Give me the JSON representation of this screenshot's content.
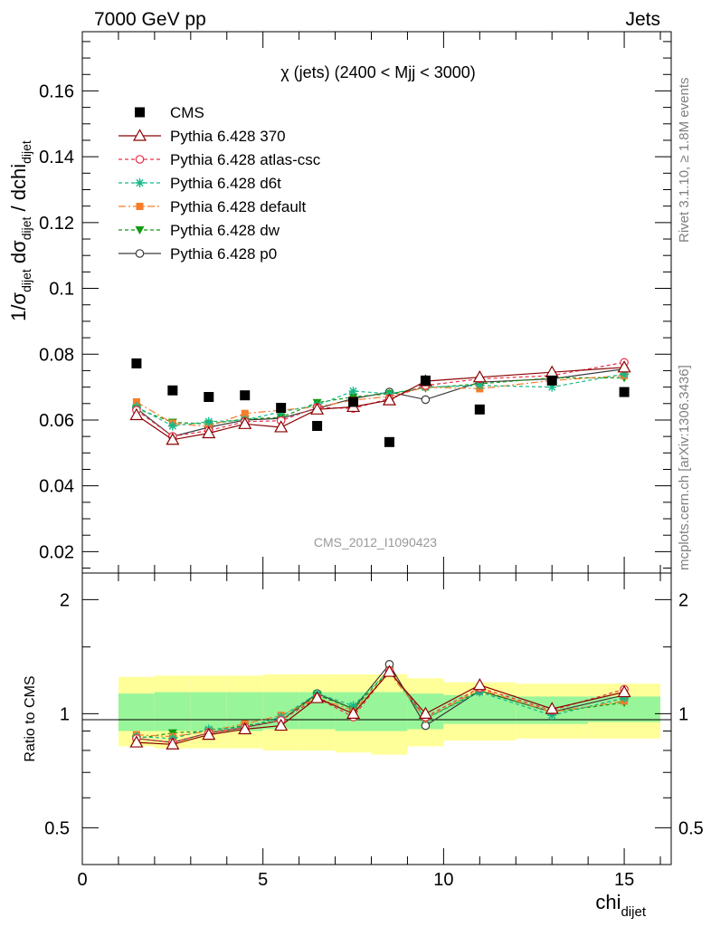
{
  "header": {
    "left": "7000 GeV pp",
    "right": "Jets"
  },
  "side_labels": {
    "rivet": "Rivet 3.1.10, ≥ 1.8M events",
    "mcplots": "mcplots.cern.ch [arXiv:1306.3436]"
  },
  "chart_data": [
    {
      "type": "scatter",
      "panel": "main",
      "title": "χ (jets) (2400 < Mjj < 3000)",
      "watermark": "CMS_2012_I1090423",
      "ylabel": "1/σ_dijet dσ_dijet / dchi_dijet",
      "xlabel": "chi_dijet",
      "xlim": [
        0,
        16.3
      ],
      "ylim": [
        0.0135,
        0.178
      ],
      "yticks": [
        "0.02",
        "0.04",
        "0.06",
        "0.08",
        "0.1",
        "0.12",
        "0.14",
        "0.16"
      ],
      "x": [
        1.5,
        2.5,
        3.5,
        4.5,
        5.5,
        6.5,
        7.5,
        8.5,
        9.5,
        11,
        13,
        15
      ],
      "legend_position": "top-left",
      "series": [
        {
          "name": "CMS",
          "color": "#000000",
          "marker": "square",
          "line": "none",
          "values": [
            0.0772,
            0.069,
            0.067,
            0.0675,
            0.0637,
            0.0582,
            0.0655,
            0.0533,
            0.072,
            0.0632,
            0.072,
            0.0685
          ]
        },
        {
          "name": "Pythia 6.428 370",
          "color": "#8b0000",
          "marker": "triangle-open",
          "line": "solid",
          "values": [
            0.0615,
            0.054,
            0.056,
            0.0588,
            0.0578,
            0.0632,
            0.064,
            0.066,
            0.0718,
            0.073,
            0.0745,
            0.076
          ]
        },
        {
          "name": "Pythia 6.428 atlas-csc",
          "color": "#e8304a",
          "marker": "circle-open",
          "line": "dashed",
          "values": [
            0.063,
            0.055,
            0.0568,
            0.0595,
            0.0598,
            0.0638,
            0.0635,
            0.0665,
            0.0705,
            0.0725,
            0.0735,
            0.0775
          ]
        },
        {
          "name": "Pythia 6.428 d6t",
          "color": "#13b88a",
          "marker": "star",
          "line": "dashed",
          "values": [
            0.064,
            0.0582,
            0.0595,
            0.06,
            0.0625,
            0.0645,
            0.0688,
            0.068,
            0.07,
            0.0705,
            0.07,
            0.074
          ]
        },
        {
          "name": "Pythia 6.428 default",
          "color": "#f57d2a",
          "marker": "square-small",
          "line": "dashdot",
          "values": [
            0.0655,
            0.059,
            0.058,
            0.062,
            0.063,
            0.064,
            0.066,
            0.0672,
            0.07,
            0.0695,
            0.072,
            0.0735
          ]
        },
        {
          "name": "Pythia 6.428 dw",
          "color": "#129a12",
          "marker": "triangle-down",
          "line": "dashed",
          "values": [
            0.0635,
            0.0593,
            0.0588,
            0.0603,
            0.0608,
            0.0653,
            0.067,
            0.068,
            0.0697,
            0.071,
            0.0728,
            0.0728
          ]
        },
        {
          "name": "Pythia 6.428 p0",
          "color": "#3c3c3c",
          "marker": "circle-open",
          "line": "solid",
          "values": [
            0.0635,
            0.055,
            0.0578,
            0.06,
            0.0605,
            0.0635,
            0.0665,
            0.0685,
            0.0662,
            0.0715,
            0.0725,
            0.0755
          ]
        }
      ]
    },
    {
      "type": "scatter",
      "panel": "ratio",
      "ylabel": "Ratio to CMS",
      "xlabel": "chi_dijet",
      "xlim": [
        0,
        16.3
      ],
      "ylim": [
        0.4,
        2.35
      ],
      "yscale": "log",
      "xticks": [
        "0",
        "5",
        "10",
        "15"
      ],
      "yticks": [
        "0.5",
        "1",
        "2"
      ],
      "x": [
        1.5,
        2.5,
        3.5,
        4.5,
        5.5,
        6.5,
        7.5,
        8.5,
        9.5,
        11,
        13,
        15
      ],
      "bin_edges": [
        1,
        2,
        3,
        4,
        5,
        6,
        7,
        8,
        9,
        10,
        12,
        14,
        16
      ],
      "band_inner": {
        "color": "#99f599",
        "lower": [
          0.9,
          0.9,
          0.9,
          0.9,
          0.91,
          0.91,
          0.9,
          0.9,
          0.91,
          0.94,
          0.94,
          0.95
        ],
        "upper": [
          1.13,
          1.14,
          1.14,
          1.14,
          1.14,
          1.14,
          1.14,
          1.14,
          1.13,
          1.12,
          1.11,
          1.11
        ]
      },
      "band_outer": {
        "color": "#ffff99",
        "lower": [
          0.82,
          0.81,
          0.81,
          0.81,
          0.8,
          0.8,
          0.79,
          0.78,
          0.82,
          0.85,
          0.86,
          0.86
        ],
        "upper": [
          1.25,
          1.26,
          1.26,
          1.26,
          1.27,
          1.27,
          1.27,
          1.27,
          1.24,
          1.21,
          1.2,
          1.2
        ]
      },
      "reference_line": 1,
      "series": [
        {
          "name": "Pythia 6.428 370",
          "color": "#8b0000",
          "marker": "triangle-open",
          "line": "solid",
          "values": [
            0.84,
            0.83,
            0.88,
            0.91,
            0.93,
            1.1,
            1.0,
            1.29,
            1.0,
            1.19,
            1.03,
            1.14
          ]
        },
        {
          "name": "Pythia 6.428 atlas-csc",
          "color": "#e8304a",
          "marker": "circle-open",
          "line": "dashed",
          "values": [
            0.86,
            0.84,
            0.89,
            0.92,
            0.96,
            1.1,
            0.98,
            1.3,
            0.98,
            1.17,
            1.02,
            1.16
          ]
        },
        {
          "name": "Pythia 6.428 d6t",
          "color": "#13b88a",
          "marker": "star",
          "line": "dashed",
          "values": [
            0.87,
            0.86,
            0.91,
            0.92,
            0.98,
            1.13,
            1.05,
            1.3,
            0.97,
            1.14,
            0.99,
            1.1
          ]
        },
        {
          "name": "Pythia 6.428 default",
          "color": "#f57d2a",
          "marker": "square-small",
          "line": "dashdot",
          "values": [
            0.88,
            0.87,
            0.9,
            0.94,
            0.99,
            1.1,
            1.02,
            1.28,
            0.97,
            1.16,
            1.01,
            1.08
          ]
        },
        {
          "name": "Pythia 6.428 dw",
          "color": "#129a12",
          "marker": "triangle-down",
          "line": "dashed",
          "values": [
            0.86,
            0.89,
            0.9,
            0.93,
            0.96,
            1.12,
            1.03,
            1.3,
            0.97,
            1.15,
            1.01,
            1.07
          ]
        },
        {
          "name": "Pythia 6.428 p0",
          "color": "#3c3c3c",
          "marker": "circle-open",
          "line": "solid",
          "values": [
            0.86,
            0.84,
            0.89,
            0.92,
            0.96,
            1.13,
            1.03,
            1.35,
            0.93,
            1.15,
            1.01,
            1.12
          ]
        }
      ]
    }
  ]
}
